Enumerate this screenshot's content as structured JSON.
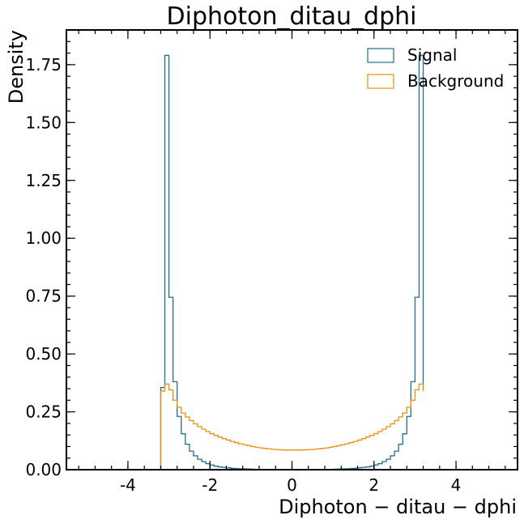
{
  "chart_data": {
    "type": "histogram",
    "title": "Diphoton_ditau_dphi",
    "xlabel": "Diphoton − ditau − dphi",
    "ylabel": "Density",
    "xlim": [
      -5.5,
      5.5
    ],
    "ylim": [
      0,
      1.9
    ],
    "xticks": [
      -4,
      -2,
      0,
      2,
      4
    ],
    "xtick_labels": [
      "-4",
      "-2",
      "0",
      "2",
      "4"
    ],
    "yticks": [
      0,
      0.25,
      0.5,
      0.75,
      1.0,
      1.25,
      1.5,
      1.75
    ],
    "ytick_labels": [
      "0.00",
      "0.25",
      "0.50",
      "0.75",
      "1.00",
      "1.25",
      "1.50",
      "1.75"
    ],
    "grid": false,
    "legend_position": "top-right",
    "series": [
      {
        "name": "Signal",
        "color": "#1f6f8b",
        "bin_edges": [
          -3.2,
          -3.1,
          -3.0,
          -2.9,
          -2.8,
          -2.7,
          -2.6,
          -2.5,
          -2.4,
          -2.3,
          -2.2,
          -2.1,
          -2.0,
          -1.9,
          -1.8,
          -1.7,
          -1.6,
          -1.5,
          -1.4,
          -1.3,
          -1.2,
          -1.1,
          -1.0,
          -0.9,
          -0.8,
          -0.7,
          -0.6,
          -0.5,
          -0.4,
          -0.3,
          -0.2,
          -0.1,
          0.0,
          0.1,
          0.2,
          0.3,
          0.4,
          0.5,
          0.6,
          0.7,
          0.8,
          0.9,
          1.0,
          1.1,
          1.2,
          1.3,
          1.4,
          1.5,
          1.6,
          1.7,
          1.8,
          1.9,
          2.0,
          2.1,
          2.2,
          2.3,
          2.4,
          2.5,
          2.6,
          2.7,
          2.8,
          2.9,
          3.0,
          3.1,
          3.2
        ],
        "values": [
          0.355,
          1.79,
          0.745,
          0.38,
          0.23,
          0.155,
          0.11,
          0.08,
          0.06,
          0.045,
          0.035,
          0.026,
          0.02,
          0.015,
          0.012,
          0.01,
          0.008,
          0.006,
          0.005,
          0.004,
          0.004,
          0.003,
          0.002,
          0.001,
          0.0,
          0.0,
          0.0,
          0.0,
          0.0,
          0.0,
          0.0,
          0.0,
          0.0,
          0.0,
          0.0,
          0.0,
          0.0,
          0.0,
          0.0,
          0.0,
          0.0,
          0.001,
          0.002,
          0.003,
          0.004,
          0.004,
          0.005,
          0.006,
          0.008,
          0.01,
          0.012,
          0.015,
          0.02,
          0.026,
          0.035,
          0.045,
          0.06,
          0.08,
          0.11,
          0.155,
          0.23,
          0.38,
          0.745,
          1.79,
          0.345
        ]
      },
      {
        "name": "Background",
        "color": "#e8900c",
        "bin_edges": [
          -3.2,
          -3.1,
          -3.0,
          -2.9,
          -2.8,
          -2.7,
          -2.6,
          -2.5,
          -2.4,
          -2.3,
          -2.2,
          -2.1,
          -2.0,
          -1.9,
          -1.8,
          -1.7,
          -1.6,
          -1.5,
          -1.4,
          -1.3,
          -1.2,
          -1.1,
          -1.0,
          -0.9,
          -0.8,
          -0.7,
          -0.6,
          -0.5,
          -0.4,
          -0.3,
          -0.2,
          -0.1,
          0.0,
          0.1,
          0.2,
          0.3,
          0.4,
          0.5,
          0.6,
          0.7,
          0.8,
          0.9,
          1.0,
          1.1,
          1.2,
          1.3,
          1.4,
          1.5,
          1.6,
          1.7,
          1.8,
          1.9,
          2.0,
          2.1,
          2.2,
          2.3,
          2.4,
          2.5,
          2.6,
          2.7,
          2.8,
          2.9,
          3.0,
          3.1,
          3.2
        ],
        "values": [
          0.34,
          0.37,
          0.345,
          0.3,
          0.27,
          0.245,
          0.228,
          0.212,
          0.198,
          0.186,
          0.175,
          0.165,
          0.156,
          0.148,
          0.141,
          0.134,
          0.128,
          0.122,
          0.117,
          0.112,
          0.108,
          0.104,
          0.1,
          0.097,
          0.094,
          0.092,
          0.09,
          0.088,
          0.087,
          0.086,
          0.085,
          0.085,
          0.085,
          0.085,
          0.085,
          0.086,
          0.087,
          0.088,
          0.09,
          0.092,
          0.094,
          0.097,
          0.1,
          0.104,
          0.108,
          0.112,
          0.117,
          0.122,
          0.128,
          0.134,
          0.141,
          0.148,
          0.156,
          0.165,
          0.175,
          0.186,
          0.198,
          0.212,
          0.228,
          0.245,
          0.27,
          0.3,
          0.345,
          0.37,
          0.34
        ]
      }
    ]
  }
}
